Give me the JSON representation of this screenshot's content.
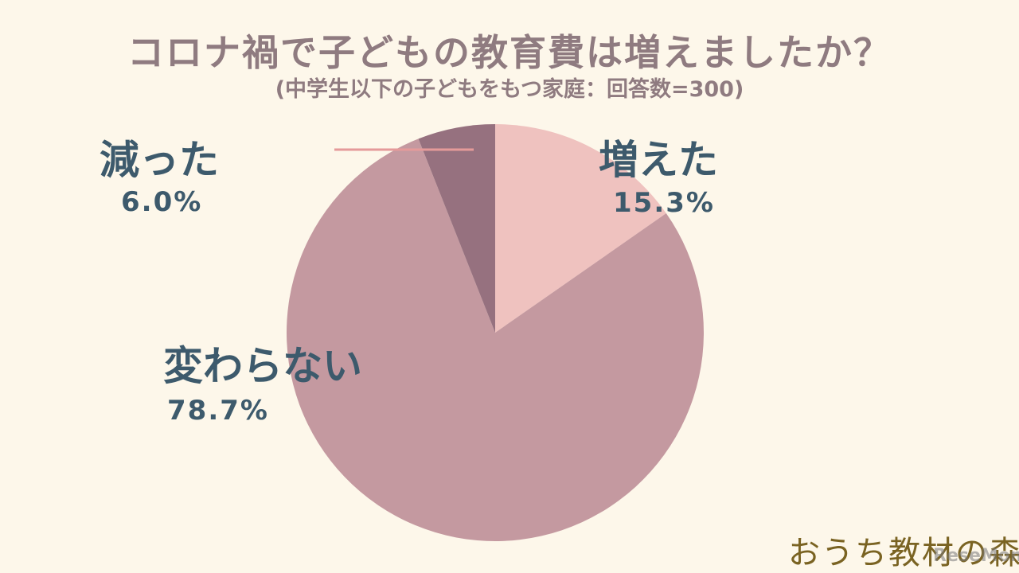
{
  "chart_data": {
    "type": "pie",
    "title": "コロナ禍で子どもの教育費は増えましたか？",
    "subtitle": "(中学生以下の子どもをもつ家庭：回答数=300)",
    "slices": [
      {
        "label": "増えた",
        "value": 15.3,
        "value_label": "15.3%",
        "color": "#efc2bf"
      },
      {
        "label": "変わらない",
        "value": 78.7,
        "value_label": "78.7%",
        "color": "#c499a0"
      },
      {
        "label": "減った",
        "value": 6.0,
        "value_label": "6.0%",
        "color": "#96717f"
      }
    ],
    "leader_line_color": "#e59a9a"
  },
  "branding": {
    "logo_text": "おうち教材の森",
    "watermark": "ReseMom"
  }
}
